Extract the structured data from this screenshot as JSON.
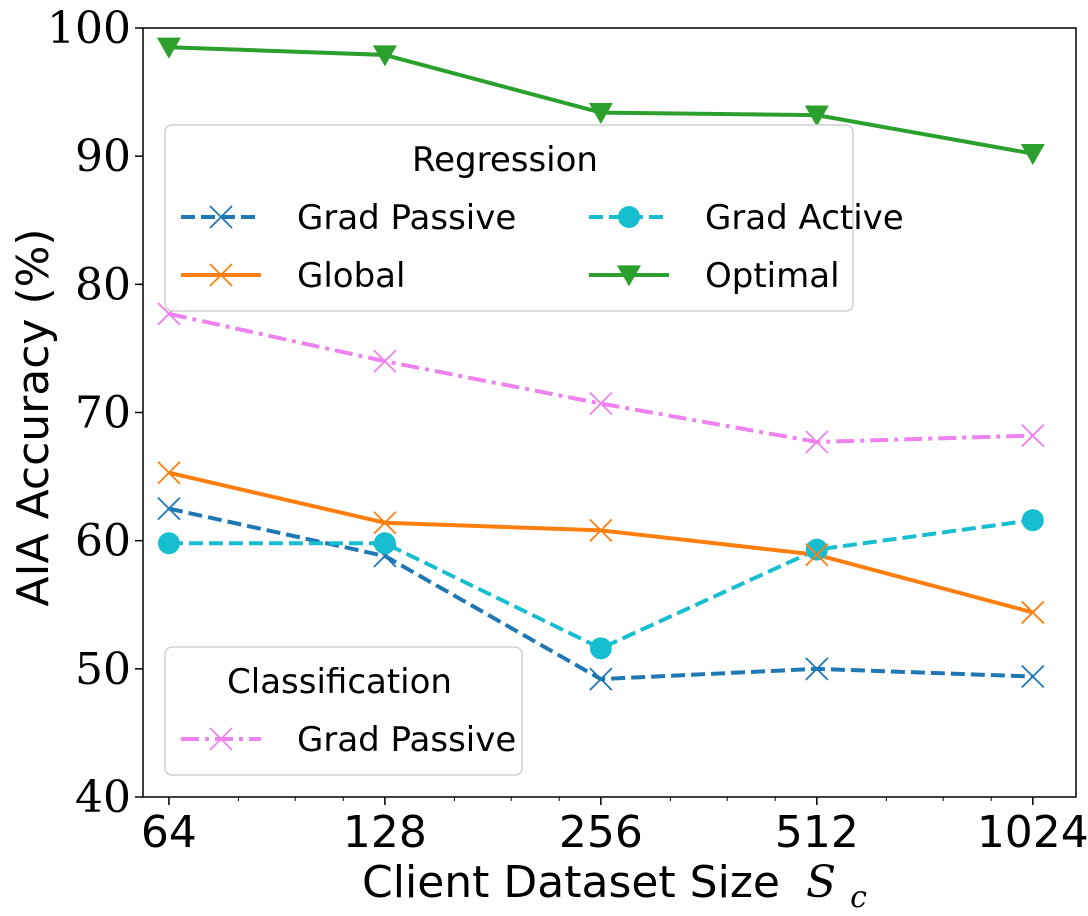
{
  "chart_data": {
    "type": "line",
    "xlabel": "Client Dataset Size",
    "xlabel_symbol": "S",
    "xlabel_subscript": "c",
    "ylabel": "AIA Accuracy (%)",
    "x_scale": "log2",
    "x": [
      64,
      128,
      256,
      512,
      1024
    ],
    "xticks": [
      "64",
      "128",
      "256",
      "512",
      "1024"
    ],
    "ylim": [
      40,
      100
    ],
    "yticks": [
      "40",
      "50",
      "60",
      "70",
      "80",
      "90",
      "100"
    ],
    "grid": false,
    "series": [
      {
        "name": "Grad Passive",
        "group": "Regression",
        "color": "#1f77b4",
        "linestyle": "dashed",
        "marker": "x",
        "values": [
          62.5,
          58.8,
          49.2,
          50.0,
          49.4
        ]
      },
      {
        "name": "Grad Active",
        "group": "Regression",
        "color": "#17becf",
        "linestyle": "dashed",
        "marker": "circle",
        "values": [
          59.8,
          59.8,
          51.6,
          59.3,
          61.6
        ]
      },
      {
        "name": "Global",
        "group": "Regression",
        "color": "#ff7f0e",
        "linestyle": "solid",
        "marker": "x",
        "values": [
          65.3,
          61.4,
          60.8,
          58.9,
          54.4
        ]
      },
      {
        "name": "Optimal",
        "group": "Regression",
        "color": "#2ca02c",
        "linestyle": "solid",
        "marker": "triangle-down",
        "values": [
          98.5,
          97.9,
          93.4,
          93.2,
          90.2
        ]
      },
      {
        "name": "Grad Passive",
        "group": "Classification",
        "color": "#ee82ee",
        "linestyle": "dashdot",
        "marker": "x",
        "values": [
          77.7,
          74.0,
          70.7,
          67.7,
          68.2
        ]
      }
    ],
    "legends": [
      {
        "title": "Regression",
        "placement": "upper-left",
        "columns": 2,
        "series_indices": [
          0,
          1,
          2,
          3
        ]
      },
      {
        "title": "Classification",
        "placement": "lower-left",
        "columns": 1,
        "series_indices": [
          4
        ]
      }
    ]
  }
}
